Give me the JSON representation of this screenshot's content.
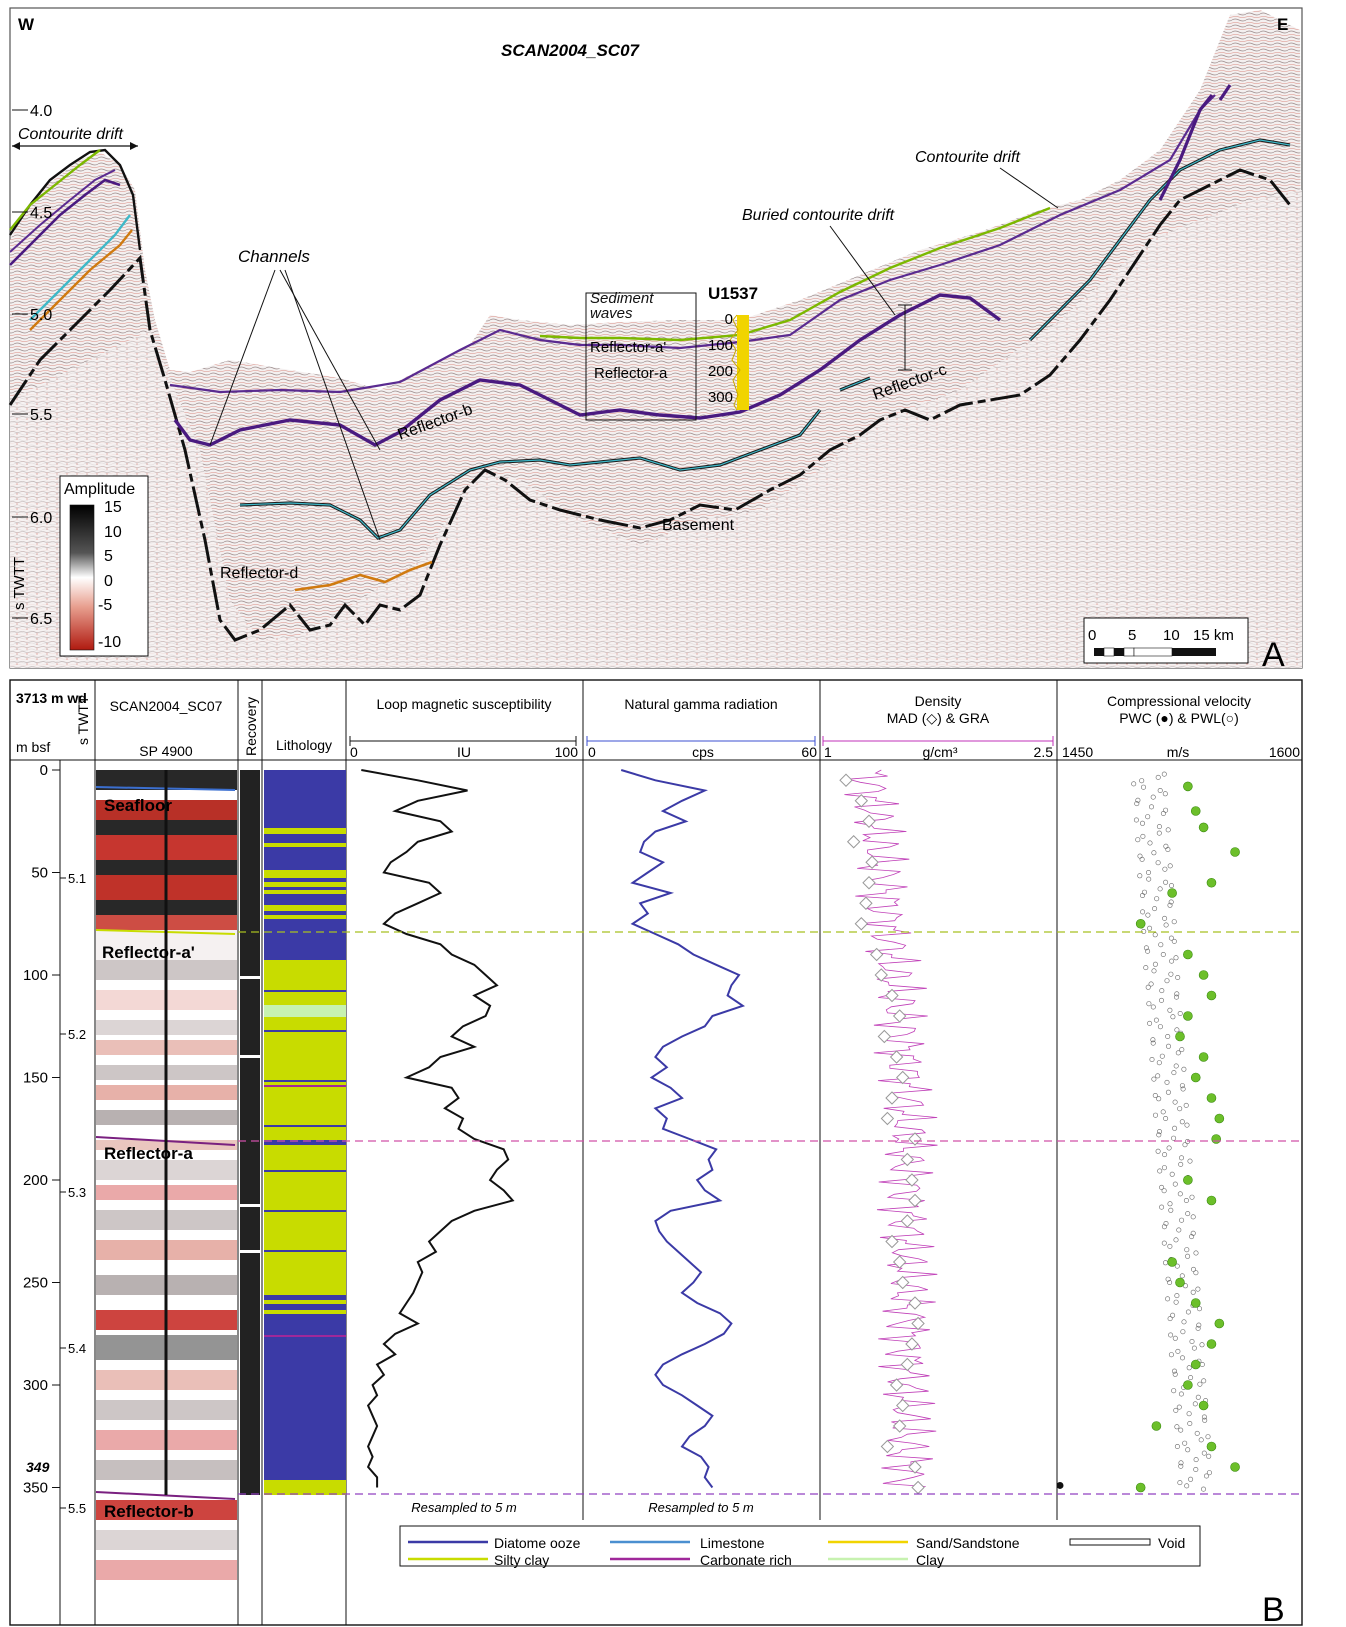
{
  "panel_a": {
    "line_name": "SCAN2004_SC07",
    "west": "W",
    "east": "E",
    "panel_label": "A",
    "yaxis_label": "s TWTT",
    "y_ticks": [
      "4.0",
      "4.5",
      "5.0",
      "5.5",
      "6.0",
      "6.5"
    ],
    "contourite_left": "Contourite drift",
    "contourite_right": "Contourite drift",
    "buried_drift": "Buried contourite drift",
    "channels": "Channels",
    "sediment_waves": "Sediment waves",
    "site": "U1537",
    "site_depths": [
      "0",
      "100",
      "200",
      "300"
    ],
    "reflector_a_prime": "Reflector-a'",
    "reflector_a": "Reflector-a",
    "reflector_b": "Reflector-b",
    "reflector_c": "Reflector-c",
    "reflector_d": "Reflector-d",
    "basement": "Basement",
    "amplitude_title": "Amplitude",
    "amplitude_ticks": [
      "15",
      "10",
      "5",
      "0",
      "-5",
      "-10"
    ],
    "scale_ticks": [
      "0",
      "5",
      "10",
      "15 km"
    ]
  },
  "panel_b": {
    "panel_label": "B",
    "water_depth": "3713 m wd",
    "depth_unit": "m bsf",
    "twtt_label": "s TWTT",
    "seismic_title": "SCAN2004_SC07",
    "shot_point": "SP 4900",
    "recovery": "Recovery",
    "lithology": "Lithology",
    "depth_ticks": [
      "0",
      "50",
      "100",
      "150",
      "200",
      "250",
      "300",
      "350"
    ],
    "depth_bottom": "349",
    "twtt_ticks": [
      "5.1",
      "5.2",
      "5.3",
      "5.4",
      "5.5"
    ],
    "seismic_labels": [
      "Seafloor",
      "Reflector-a'",
      "Reflector-a",
      "Reflector-b"
    ],
    "mag": {
      "title": "Loop magnetic susceptibility",
      "min": "0",
      "max": "100",
      "unit": "IU",
      "note": "Resampled to 5 m"
    },
    "ngr": {
      "title": "Natural gamma radiation",
      "min": "0",
      "max": "60",
      "unit": "cps",
      "note": "Resampled to 5 m"
    },
    "density": {
      "title": "Density",
      "subtitle": "MAD (◇) & GRA",
      "min": "1",
      "max": "2.5",
      "unit": "g/cm³"
    },
    "velocity": {
      "title": "Compressional velocity",
      "subtitle": "PWC (●) & PWL(○)",
      "min": "1450",
      "max": "1600",
      "unit": "m/s"
    },
    "legend": [
      {
        "label": "Diatome ooze",
        "color": "#3b3aa6"
      },
      {
        "label": "Silty clay",
        "color": "#c8dc00"
      },
      {
        "label": "Limestone",
        "color": "#4a8fd0"
      },
      {
        "label": "Carbonate rich",
        "color": "#a0289a"
      },
      {
        "label": "Sand/Sandstone",
        "color": "#f1d400"
      },
      {
        "label": "Clay",
        "color": "#c7f2b0"
      },
      {
        "label": "Void",
        "color": "#ffffff"
      }
    ]
  },
  "chart_data": [
    {
      "type": "line",
      "title": "Loop magnetic susceptibility",
      "xlabel": "IU",
      "ylabel": "m bsf",
      "xlim": [
        0,
        100
      ],
      "ylim": [
        0,
        355
      ],
      "depth": [
        0,
        5,
        10,
        15,
        20,
        25,
        30,
        35,
        40,
        45,
        50,
        55,
        60,
        65,
        70,
        75,
        80,
        85,
        90,
        95,
        100,
        105,
        110,
        115,
        120,
        125,
        130,
        135,
        140,
        145,
        150,
        155,
        160,
        165,
        170,
        175,
        180,
        185,
        190,
        195,
        200,
        205,
        210,
        215,
        220,
        225,
        230,
        235,
        240,
        245,
        250,
        255,
        260,
        265,
        270,
        275,
        280,
        285,
        290,
        295,
        300,
        305,
        310,
        315,
        320,
        325,
        330,
        335,
        340,
        345,
        350
      ],
      "values": [
        5,
        30,
        52,
        30,
        20,
        40,
        45,
        30,
        25,
        18,
        15,
        35,
        40,
        30,
        20,
        15,
        25,
        40,
        45,
        55,
        60,
        65,
        55,
        62,
        60,
        50,
        45,
        55,
        40,
        35,
        25,
        45,
        48,
        42,
        50,
        48,
        55,
        68,
        70,
        65,
        62,
        68,
        72,
        55,
        45,
        40,
        35,
        38,
        30,
        32,
        30,
        28,
        25,
        22,
        30,
        20,
        15,
        20,
        12,
        15,
        10,
        12,
        8,
        10,
        12,
        10,
        8,
        10,
        8,
        12,
        12
      ]
    },
    {
      "type": "line",
      "title": "Natural gamma radiation",
      "xlabel": "cps",
      "ylabel": "m bsf",
      "xlim": [
        0,
        60
      ],
      "ylim": [
        0,
        355
      ],
      "depth": [
        0,
        5,
        10,
        15,
        20,
        25,
        30,
        35,
        40,
        45,
        50,
        55,
        60,
        65,
        70,
        75,
        80,
        85,
        90,
        95,
        100,
        105,
        110,
        115,
        120,
        125,
        130,
        135,
        140,
        145,
        150,
        155,
        160,
        165,
        170,
        175,
        180,
        185,
        190,
        195,
        200,
        205,
        210,
        215,
        220,
        225,
        230,
        235,
        240,
        245,
        250,
        255,
        260,
        265,
        270,
        275,
        280,
        285,
        290,
        295,
        300,
        305,
        310,
        315,
        320,
        325,
        330,
        335,
        340,
        345,
        350
      ],
      "values": [
        9,
        18,
        31,
        25,
        20,
        26,
        18,
        15,
        14,
        20,
        16,
        12,
        22,
        14,
        16,
        12,
        18,
        24,
        28,
        34,
        40,
        38,
        37,
        41,
        33,
        31,
        25,
        20,
        18,
        21,
        17,
        22,
        25,
        18,
        21,
        20,
        27,
        34,
        32,
        33,
        29,
        31,
        35,
        22,
        18,
        19,
        21,
        24,
        27,
        30,
        28,
        25,
        29,
        35,
        38,
        36,
        31,
        25,
        20,
        18,
        20,
        25,
        29,
        33,
        31,
        27,
        25,
        30,
        32,
        31,
        33
      ]
    },
    {
      "type": "scatter",
      "title": "Density MAD",
      "xlabel": "g/cm³",
      "ylabel": "m bsf",
      "xlim": [
        1,
        2.5
      ],
      "ylim": [
        0,
        355
      ],
      "depth": [
        5,
        15,
        25,
        35,
        45,
        55,
        65,
        75,
        90,
        100,
        110,
        120,
        130,
        140,
        150,
        160,
        170,
        180,
        190,
        200,
        210,
        220,
        230,
        240,
        250,
        260,
        270,
        280,
        290,
        300,
        310,
        320,
        330,
        340,
        350
      ],
      "values": [
        1.15,
        1.25,
        1.3,
        1.2,
        1.32,
        1.3,
        1.28,
        1.25,
        1.35,
        1.38,
        1.45,
        1.5,
        1.4,
        1.48,
        1.52,
        1.45,
        1.42,
        1.6,
        1.55,
        1.58,
        1.6,
        1.55,
        1.45,
        1.5,
        1.52,
        1.6,
        1.62,
        1.58,
        1.55,
        1.48,
        1.52,
        1.5,
        1.42,
        1.6,
        1.62
      ]
    },
    {
      "type": "scatter",
      "title": "Compressional velocity PWC",
      "xlabel": "m/s",
      "ylabel": "m bsf",
      "xlim": [
        1450,
        1600
      ],
      "ylim": [
        0,
        355
      ],
      "depth": [
        8,
        20,
        28,
        40,
        55,
        60,
        75,
        90,
        100,
        110,
        120,
        130,
        140,
        150,
        160,
        170,
        180,
        200,
        210,
        240,
        250,
        260,
        270,
        280,
        290,
        300,
        310,
        320,
        330,
        340,
        350
      ],
      "values": [
        1530,
        1535,
        1540,
        1560,
        1545,
        1520,
        1500,
        1530,
        1540,
        1545,
        1530,
        1525,
        1540,
        1535,
        1545,
        1550,
        1548,
        1530,
        1545,
        1520,
        1525,
        1535,
        1550,
        1545,
        1535,
        1530,
        1540,
        1510,
        1545,
        1560,
        1500
      ]
    }
  ]
}
